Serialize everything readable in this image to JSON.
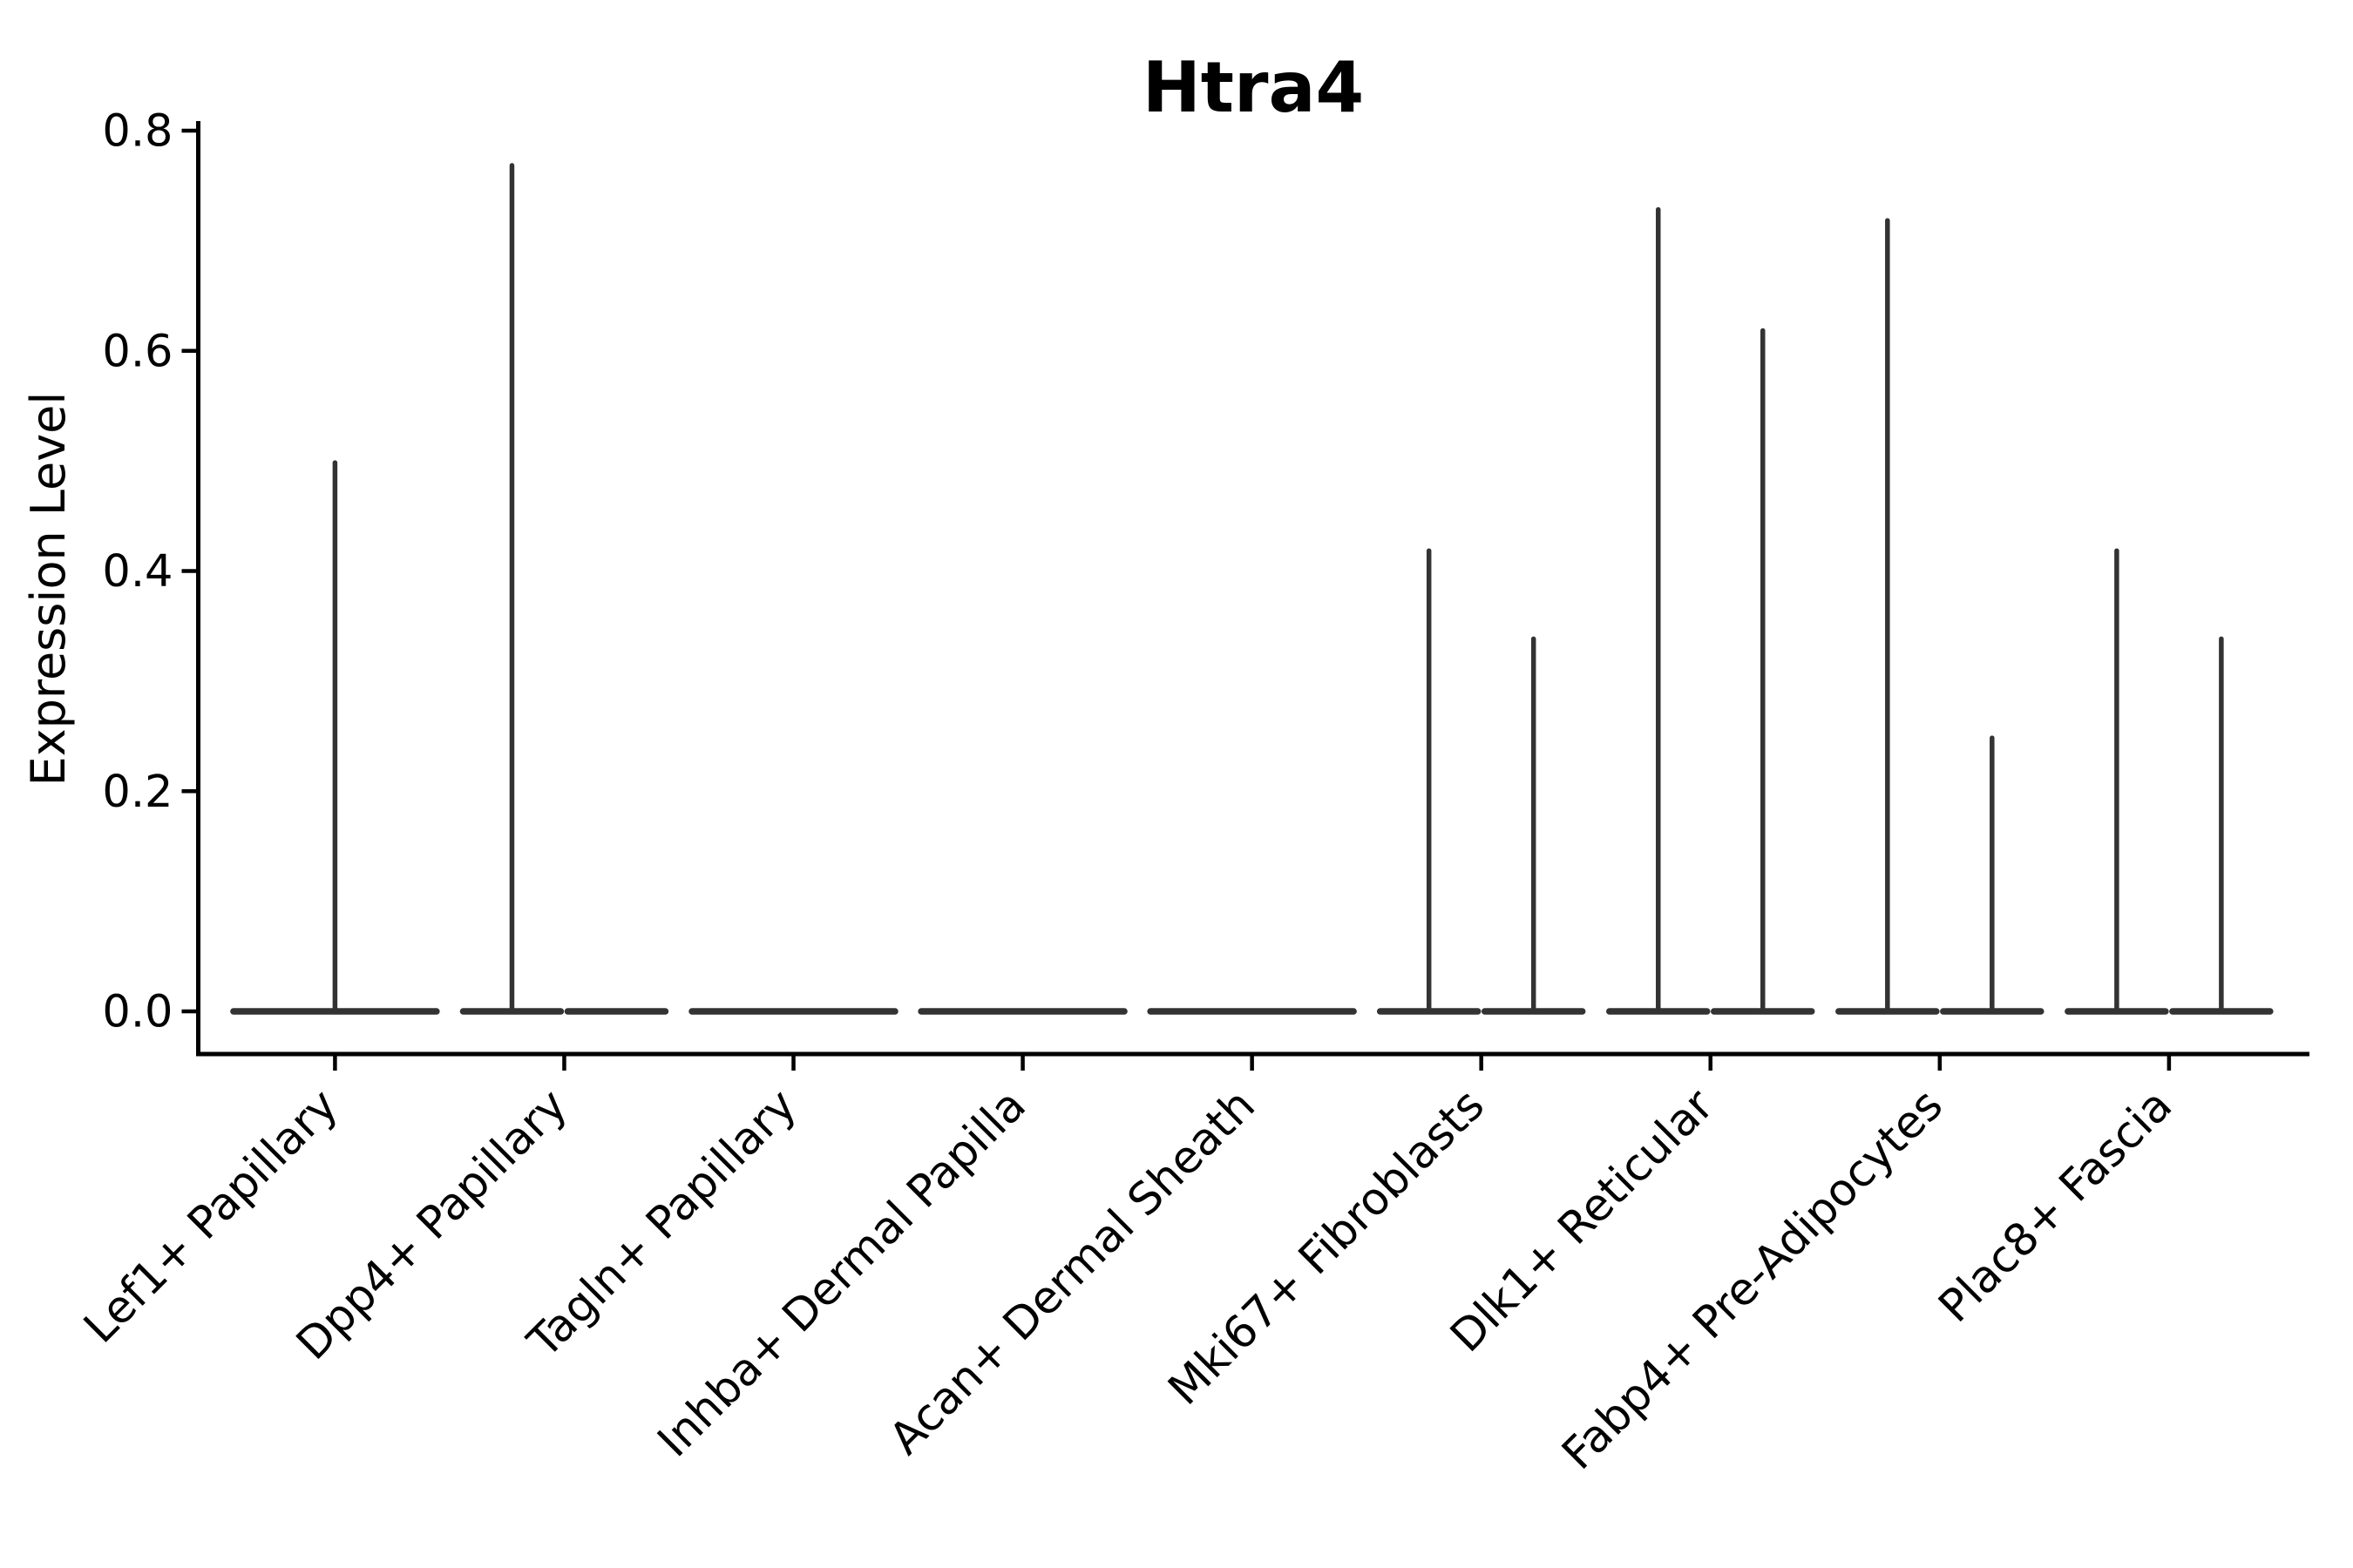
{
  "figure": {
    "background": "#ffffff"
  },
  "colors": {
    "violin": "#333333",
    "axis": "#000000",
    "text": "#000000"
  },
  "chart_data": {
    "type": "violin",
    "title": "Htra4",
    "ylabel": "Expression Level",
    "xlabel": "",
    "ylim": [
      0,
      0.8
    ],
    "y_ticks": [
      "0.0",
      "0.2",
      "0.4",
      "0.6",
      "0.8"
    ],
    "grid": false,
    "legend": null,
    "baseline_value": 0,
    "categories": [
      "Lef1+ Papillary",
      "Dpp4+ Papillary",
      "Tagln+ Papillary",
      "Inhba+ Dermal Papilla",
      "Acan+ Dermal Sheath",
      "Mki67+ Fibroblasts",
      "Dlk1+ Reticular",
      "Fabp4+ Pre-Adipocytes",
      "Plac8+ Fascia"
    ],
    "violins": [
      {
        "category": "Lef1+ Papillary",
        "group": "full",
        "max_expression": 0.5
      },
      {
        "category": "Dpp4+ Papillary",
        "group": "left",
        "max_expression": 0.77
      },
      {
        "category": "Dpp4+ Papillary",
        "group": "right",
        "max_expression": 0
      },
      {
        "category": "Tagln+ Papillary",
        "group": "full",
        "max_expression": 0
      },
      {
        "category": "Inhba+ Dermal Papilla",
        "group": "full",
        "max_expression": 0
      },
      {
        "category": "Acan+ Dermal Sheath",
        "group": "full",
        "max_expression": 0
      },
      {
        "category": "Mki67+ Fibroblasts",
        "group": "left",
        "max_expression": 0.42
      },
      {
        "category": "Mki67+ Fibroblasts",
        "group": "right",
        "max_expression": 0.34
      },
      {
        "category": "Dlk1+ Reticular",
        "group": "left",
        "max_expression": 0.73
      },
      {
        "category": "Dlk1+ Reticular",
        "group": "right",
        "max_expression": 0.62
      },
      {
        "category": "Fabp4+ Pre-Adipocytes",
        "group": "left",
        "max_expression": 0.72
      },
      {
        "category": "Fabp4+ Pre-Adipocytes",
        "group": "right",
        "max_expression": 0.25
      },
      {
        "category": "Plac8+ Fascia",
        "group": "left",
        "max_expression": 0.42
      },
      {
        "category": "Plac8+ Fascia",
        "group": "right",
        "max_expression": 0.34
      }
    ]
  }
}
